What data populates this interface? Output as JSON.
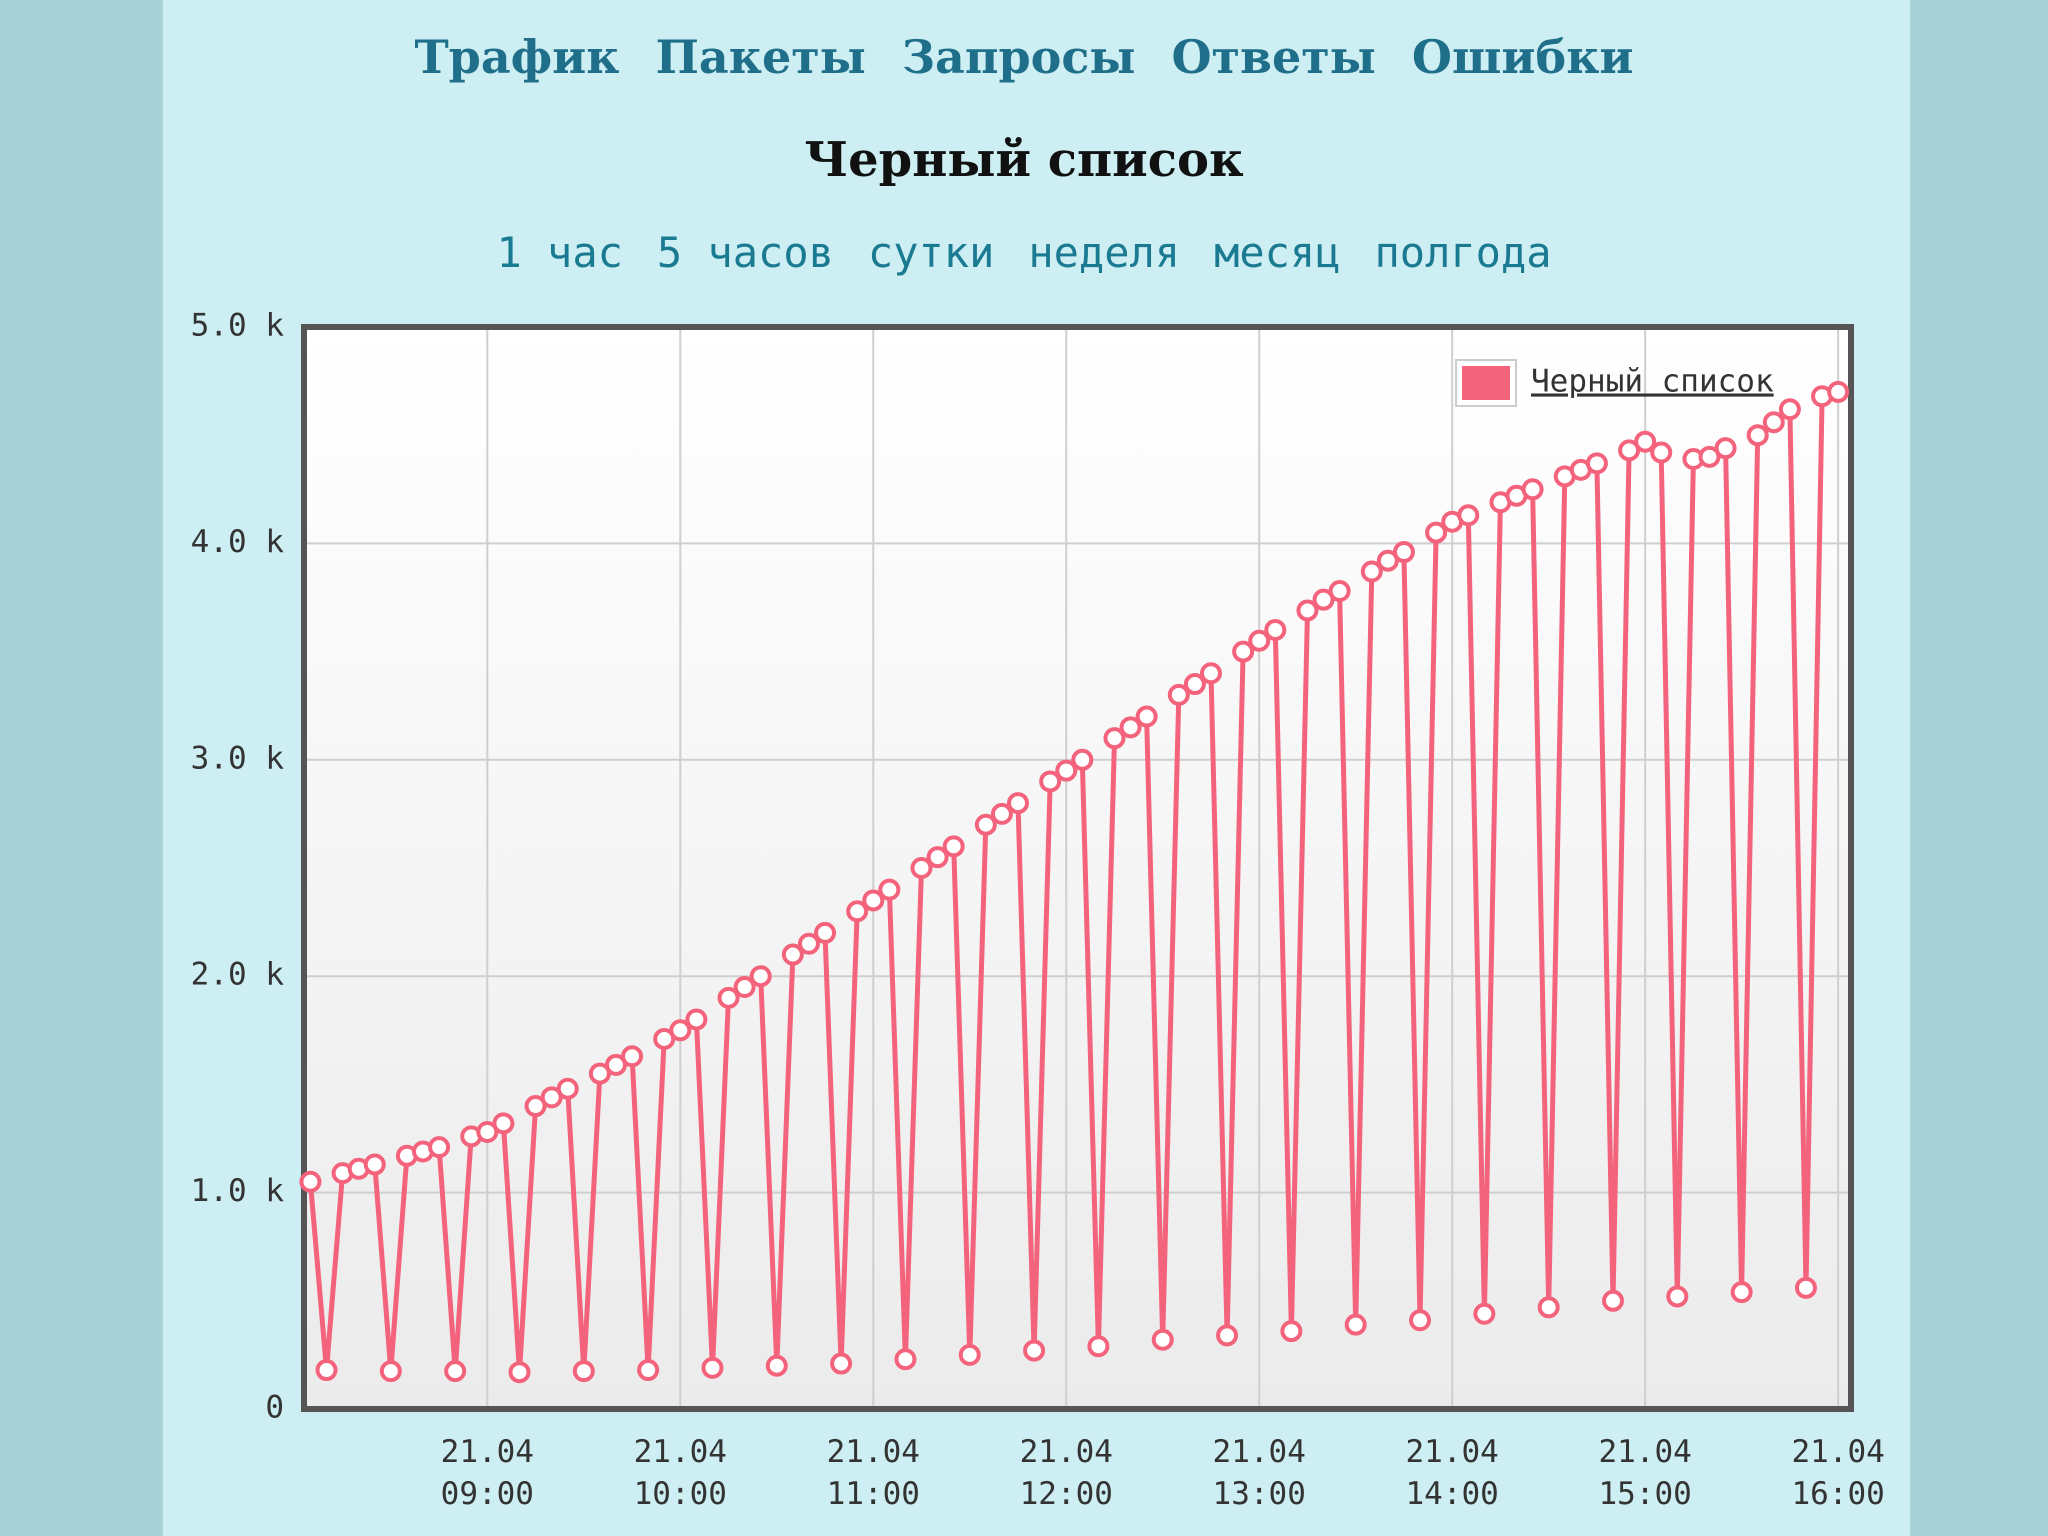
{
  "nav": [
    "Трафик",
    "Пакеты",
    "Запросы",
    "Ответы",
    "Ошибки"
  ],
  "heading": "Черный список",
  "periods": [
    "1 час",
    "5 часов",
    "сутки",
    "неделя",
    "месяц",
    "полгода"
  ],
  "chart_data": {
    "type": "line",
    "x": [
      "21.04 08:05",
      "21.04 08:10",
      "21.04 08:15",
      "21.04 08:20",
      "21.04 08:25",
      "21.04 08:30",
      "21.04 08:35",
      "21.04 08:40",
      "21.04 08:45",
      "21.04 08:50",
      "21.04 08:55",
      "21.04 09:00",
      "21.04 09:05",
      "21.04 09:10",
      "21.04 09:15",
      "21.04 09:20",
      "21.04 09:25",
      "21.04 09:30",
      "21.04 09:35",
      "21.04 09:40",
      "21.04 09:45",
      "21.04 09:50",
      "21.04 09:55",
      "21.04 10:00",
      "21.04 10:05",
      "21.04 10:10",
      "21.04 10:15",
      "21.04 10:20",
      "21.04 10:25",
      "21.04 10:30",
      "21.04 10:35",
      "21.04 10:40",
      "21.04 10:45",
      "21.04 10:50",
      "21.04 10:55",
      "21.04 11:00",
      "21.04 11:05",
      "21.04 11:10",
      "21.04 11:15",
      "21.04 11:20",
      "21.04 11:25",
      "21.04 11:30",
      "21.04 11:35",
      "21.04 11:40",
      "21.04 11:45",
      "21.04 11:50",
      "21.04 11:55",
      "21.04 12:00",
      "21.04 12:05",
      "21.04 12:10",
      "21.04 12:15",
      "21.04 12:20",
      "21.04 12:25",
      "21.04 12:30",
      "21.04 12:35",
      "21.04 12:40",
      "21.04 12:45",
      "21.04 12:50",
      "21.04 12:55",
      "21.04 13:00",
      "21.04 13:05",
      "21.04 13:10",
      "21.04 13:15",
      "21.04 13:20",
      "21.04 13:25",
      "21.04 13:30",
      "21.04 13:35",
      "21.04 13:40",
      "21.04 13:45",
      "21.04 13:50",
      "21.04 13:55",
      "21.04 14:00",
      "21.04 14:05",
      "21.04 14:10",
      "21.04 14:15",
      "21.04 14:20",
      "21.04 14:25",
      "21.04 14:30",
      "21.04 14:35",
      "21.04 14:40",
      "21.04 14:45",
      "21.04 14:50",
      "21.04 14:55",
      "21.04 15:00",
      "21.04 15:05",
      "21.04 15:10",
      "21.04 15:15",
      "21.04 15:20",
      "21.04 15:25",
      "21.04 15:30",
      "21.04 15:35",
      "21.04 15:40",
      "21.04 15:45",
      "21.04 15:50",
      "21.04 15:55",
      "21.04 16:00"
    ],
    "series": [
      {
        "name": "Черный список",
        "color": "#f4637c",
        "values": [
          1050,
          180,
          1090,
          1110,
          1130,
          175,
          1170,
          1190,
          1210,
          175,
          1260,
          1280,
          1320,
          170,
          1400,
          1440,
          1480,
          175,
          1550,
          1590,
          1630,
          180,
          1710,
          1750,
          1800,
          190,
          1900,
          1950,
          2000,
          200,
          2100,
          2150,
          2200,
          210,
          2300,
          2350,
          2400,
          230,
          2500,
          2550,
          2600,
          250,
          2700,
          2750,
          2800,
          270,
          2900,
          2950,
          3000,
          290,
          3100,
          3150,
          3200,
          320,
          3300,
          3350,
          3400,
          340,
          3500,
          3550,
          3600,
          360,
          3690,
          3740,
          3780,
          390,
          3870,
          3920,
          3960,
          410,
          4050,
          4100,
          4130,
          440,
          4190,
          4220,
          4250,
          470,
          4310,
          4340,
          4370,
          500,
          4430,
          4470,
          4420,
          520,
          4390,
          4400,
          4440,
          540,
          4500,
          4560,
          4620,
          560,
          4680,
          4700
        ]
      }
    ],
    "xlim": [
      "21.04 08:03",
      "21.04 16:04"
    ],
    "xticks": [
      "21.04 09:00",
      "21.04 10:00",
      "21.04 11:00",
      "21.04 12:00",
      "21.04 13:00",
      "21.04 14:00",
      "21.04 15:00",
      "21.04 16:00"
    ],
    "ylim": [
      0,
      5000
    ],
    "yticks": [
      0,
      {
        "value": 1000,
        "label": "1.0 k"
      },
      {
        "value": 2000,
        "label": "2.0 k"
      },
      {
        "value": 3000,
        "label": "3.0 k"
      },
      {
        "value": 4000,
        "label": "4.0 k"
      },
      {
        "value": 5000,
        "label": "5.0 k"
      }
    ],
    "grid": true,
    "legend": "upper right"
  }
}
